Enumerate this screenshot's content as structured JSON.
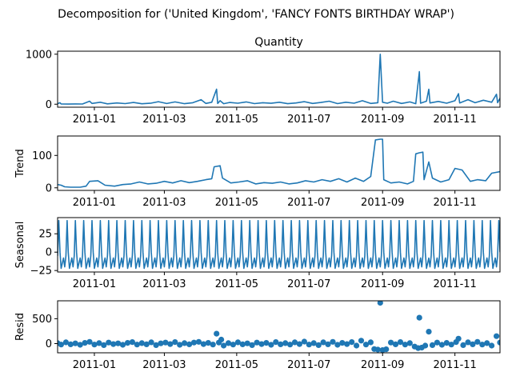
{
  "figure": {
    "suptitle": "Decomposition for ('United Kingdom', 'FANCY FONTS BIRTHDAY WRAP')"
  },
  "colors": {
    "series": "#1f77b4",
    "axis": "#000000",
    "background": "#ffffff"
  },
  "chart_data": [
    {
      "type": "line",
      "title": "Quantity",
      "ylabel": "",
      "xlim": [
        "2010-12-01",
        "2011-12-09"
      ],
      "ylim": [
        -60,
        1060
      ],
      "yticks": [
        0,
        1000
      ],
      "xticks": [
        "2011-01",
        "2011-03",
        "2011-05",
        "2011-07",
        "2011-09",
        "2011-11"
      ],
      "grid": false,
      "series": [
        {
          "points": [
            [
              "2010-12-01",
              10
            ],
            [
              "2010-12-03",
              30
            ],
            [
              "2010-12-04",
              5
            ],
            [
              "2010-12-10",
              3
            ],
            [
              "2010-12-16",
              6
            ],
            [
              "2010-12-22",
              4
            ],
            [
              "2010-12-28",
              60
            ],
            [
              "2010-12-30",
              15
            ],
            [
              "2011-01-06",
              40
            ],
            [
              "2011-01-12",
              8
            ],
            [
              "2011-01-20",
              25
            ],
            [
              "2011-01-27",
              12
            ],
            [
              "2011-02-03",
              35
            ],
            [
              "2011-02-10",
              9
            ],
            [
              "2011-02-18",
              22
            ],
            [
              "2011-02-24",
              50
            ],
            [
              "2011-03-03",
              14
            ],
            [
              "2011-03-10",
              45
            ],
            [
              "2011-03-18",
              10
            ],
            [
              "2011-03-25",
              30
            ],
            [
              "2011-04-01",
              90
            ],
            [
              "2011-04-05",
              15
            ],
            [
              "2011-04-10",
              40
            ],
            [
              "2011-04-14",
              300
            ],
            [
              "2011-04-15",
              15
            ],
            [
              "2011-04-17",
              70
            ],
            [
              "2011-04-20",
              10
            ],
            [
              "2011-04-25",
              35
            ],
            [
              "2011-05-02",
              20
            ],
            [
              "2011-05-09",
              45
            ],
            [
              "2011-05-16",
              12
            ],
            [
              "2011-05-23",
              30
            ],
            [
              "2011-05-30",
              18
            ],
            [
              "2011-06-06",
              40
            ],
            [
              "2011-06-13",
              10
            ],
            [
              "2011-06-20",
              25
            ],
            [
              "2011-06-27",
              50
            ],
            [
              "2011-07-04",
              15
            ],
            [
              "2011-07-11",
              35
            ],
            [
              "2011-07-18",
              60
            ],
            [
              "2011-07-25",
              12
            ],
            [
              "2011-08-01",
              40
            ],
            [
              "2011-08-08",
              20
            ],
            [
              "2011-08-15",
              70
            ],
            [
              "2011-08-22",
              15
            ],
            [
              "2011-08-28",
              30
            ],
            [
              "2011-08-30",
              1000
            ],
            [
              "2011-09-01",
              40
            ],
            [
              "2011-09-05",
              20
            ],
            [
              "2011-09-10",
              60
            ],
            [
              "2011-09-17",
              15
            ],
            [
              "2011-09-24",
              45
            ],
            [
              "2011-09-29",
              10
            ],
            [
              "2011-10-02",
              650
            ],
            [
              "2011-10-03",
              20
            ],
            [
              "2011-10-08",
              60
            ],
            [
              "2011-10-10",
              300
            ],
            [
              "2011-10-11",
              25
            ],
            [
              "2011-10-18",
              55
            ],
            [
              "2011-10-25",
              20
            ],
            [
              "2011-11-01",
              70
            ],
            [
              "2011-11-04",
              210
            ],
            [
              "2011-11-05",
              25
            ],
            [
              "2011-11-12",
              90
            ],
            [
              "2011-11-18",
              30
            ],
            [
              "2011-11-25",
              80
            ],
            [
              "2011-12-02",
              40
            ],
            [
              "2011-12-06",
              200
            ],
            [
              "2011-12-07",
              30
            ],
            [
              "2011-12-09",
              120
            ]
          ]
        }
      ]
    },
    {
      "type": "line",
      "title": "",
      "ylabel": "Trend",
      "xlim": [
        "2010-12-01",
        "2011-12-09"
      ],
      "ylim": [
        -8,
        160
      ],
      "yticks": [
        0,
        100
      ],
      "xticks": [
        "2011-01",
        "2011-03",
        "2011-05",
        "2011-07",
        "2011-09",
        "2011-11"
      ],
      "grid": false,
      "series": [
        {
          "points": [
            [
              "2010-12-01",
              10
            ],
            [
              "2010-12-04",
              8
            ],
            [
              "2010-12-07",
              3
            ],
            [
              "2010-12-12",
              2
            ],
            [
              "2010-12-20",
              2
            ],
            [
              "2010-12-25",
              5
            ],
            [
              "2010-12-28",
              20
            ],
            [
              "2011-01-04",
              22
            ],
            [
              "2011-01-10",
              8
            ],
            [
              "2011-01-18",
              5
            ],
            [
              "2011-01-25",
              10
            ],
            [
              "2011-02-01",
              12
            ],
            [
              "2011-02-08",
              18
            ],
            [
              "2011-02-15",
              12
            ],
            [
              "2011-02-22",
              14
            ],
            [
              "2011-03-01",
              20
            ],
            [
              "2011-03-08",
              15
            ],
            [
              "2011-03-15",
              22
            ],
            [
              "2011-03-22",
              16
            ],
            [
              "2011-03-29",
              20
            ],
            [
              "2011-04-05",
              25
            ],
            [
              "2011-04-10",
              28
            ],
            [
              "2011-04-12",
              65
            ],
            [
              "2011-04-17",
              68
            ],
            [
              "2011-04-19",
              30
            ],
            [
              "2011-04-26",
              15
            ],
            [
              "2011-05-03",
              18
            ],
            [
              "2011-05-10",
              22
            ],
            [
              "2011-05-17",
              12
            ],
            [
              "2011-05-24",
              16
            ],
            [
              "2011-05-31",
              14
            ],
            [
              "2011-06-07",
              18
            ],
            [
              "2011-06-14",
              12
            ],
            [
              "2011-06-21",
              15
            ],
            [
              "2011-06-28",
              22
            ],
            [
              "2011-07-05",
              18
            ],
            [
              "2011-07-12",
              25
            ],
            [
              "2011-07-19",
              20
            ],
            [
              "2011-07-26",
              28
            ],
            [
              "2011-08-02",
              18
            ],
            [
              "2011-08-09",
              30
            ],
            [
              "2011-08-16",
              20
            ],
            [
              "2011-08-22",
              35
            ],
            [
              "2011-08-26",
              148
            ],
            [
              "2011-08-30",
              150
            ],
            [
              "2011-09-01",
              150
            ],
            [
              "2011-09-02",
              25
            ],
            [
              "2011-09-08",
              15
            ],
            [
              "2011-09-15",
              18
            ],
            [
              "2011-09-22",
              12
            ],
            [
              "2011-09-27",
              20
            ],
            [
              "2011-09-29",
              105
            ],
            [
              "2011-10-02",
              108
            ],
            [
              "2011-10-05",
              110
            ],
            [
              "2011-10-06",
              25
            ],
            [
              "2011-10-10",
              80
            ],
            [
              "2011-10-13",
              30
            ],
            [
              "2011-10-20",
              18
            ],
            [
              "2011-10-27",
              25
            ],
            [
              "2011-11-01",
              60
            ],
            [
              "2011-11-07",
              55
            ],
            [
              "2011-11-14",
              20
            ],
            [
              "2011-11-20",
              25
            ],
            [
              "2011-11-27",
              22
            ],
            [
              "2011-12-02",
              45
            ],
            [
              "2011-12-09",
              50
            ]
          ]
        }
      ]
    },
    {
      "type": "line",
      "title": "",
      "ylabel": "Seasonal",
      "xlim": [
        "2010-12-01",
        "2011-12-09"
      ],
      "ylim": [
        -27,
        47
      ],
      "yticks": [
        -25,
        0,
        25
      ],
      "xticks": [
        "2011-01",
        "2011-03",
        "2011-05",
        "2011-07",
        "2011-09",
        "2011-11"
      ],
      "grid": false,
      "pattern": {
        "kind": "weekly",
        "start": "2010-12-01",
        "end": "2011-12-09",
        "cycle_days": 7,
        "values": [
          -5,
          43,
          0,
          -22,
          -15,
          -8,
          -20
        ]
      }
    },
    {
      "type": "scatter",
      "title": "",
      "ylabel": "Resid",
      "xlim": [
        "2010-12-01",
        "2011-12-09"
      ],
      "ylim": [
        -185,
        860
      ],
      "yticks": [
        0,
        500
      ],
      "xticks": [
        "2011-01",
        "2011-03",
        "2011-05",
        "2011-07",
        "2011-09",
        "2011-11"
      ],
      "grid": false,
      "series": [
        {
          "points": [
            [
              "2010-12-01",
              10
            ],
            [
              "2010-12-04",
              -20
            ],
            [
              "2010-12-08",
              25
            ],
            [
              "2010-12-12",
              -15
            ],
            [
              "2010-12-16",
              5
            ],
            [
              "2010-12-20",
              -25
            ],
            [
              "2010-12-24",
              15
            ],
            [
              "2010-12-28",
              35
            ],
            [
              "2011-01-01",
              -20
            ],
            [
              "2011-01-05",
              10
            ],
            [
              "2011-01-09",
              -30
            ],
            [
              "2011-01-13",
              20
            ],
            [
              "2011-01-17",
              -10
            ],
            [
              "2011-01-21",
              5
            ],
            [
              "2011-01-25",
              -25
            ],
            [
              "2011-01-29",
              15
            ],
            [
              "2011-02-02",
              30
            ],
            [
              "2011-02-06",
              -20
            ],
            [
              "2011-02-10",
              10
            ],
            [
              "2011-02-14",
              -15
            ],
            [
              "2011-02-18",
              25
            ],
            [
              "2011-02-22",
              -30
            ],
            [
              "2011-02-26",
              5
            ],
            [
              "2011-03-02",
              20
            ],
            [
              "2011-03-06",
              -10
            ],
            [
              "2011-03-10",
              30
            ],
            [
              "2011-03-14",
              -25
            ],
            [
              "2011-03-18",
              10
            ],
            [
              "2011-03-22",
              -15
            ],
            [
              "2011-03-26",
              20
            ],
            [
              "2011-03-30",
              35
            ],
            [
              "2011-04-03",
              -10
            ],
            [
              "2011-04-07",
              15
            ],
            [
              "2011-04-11",
              -20
            ],
            [
              "2011-04-14",
              200
            ],
            [
              "2011-04-16",
              20
            ],
            [
              "2011-04-18",
              80
            ],
            [
              "2011-04-20",
              -40
            ],
            [
              "2011-04-24",
              10
            ],
            [
              "2011-04-28",
              -20
            ],
            [
              "2011-05-02",
              25
            ],
            [
              "2011-05-06",
              -15
            ],
            [
              "2011-05-10",
              5
            ],
            [
              "2011-05-14",
              -30
            ],
            [
              "2011-05-18",
              20
            ],
            [
              "2011-05-22",
              -10
            ],
            [
              "2011-05-26",
              15
            ],
            [
              "2011-05-30",
              -25
            ],
            [
              "2011-06-03",
              30
            ],
            [
              "2011-06-07",
              -15
            ],
            [
              "2011-06-11",
              10
            ],
            [
              "2011-06-15",
              -20
            ],
            [
              "2011-06-19",
              25
            ],
            [
              "2011-06-23",
              -10
            ],
            [
              "2011-06-27",
              40
            ],
            [
              "2011-07-01",
              -20
            ],
            [
              "2011-07-05",
              10
            ],
            [
              "2011-07-09",
              -30
            ],
            [
              "2011-07-13",
              25
            ],
            [
              "2011-07-17",
              -15
            ],
            [
              "2011-07-21",
              35
            ],
            [
              "2011-07-25",
              -25
            ],
            [
              "2011-07-29",
              15
            ],
            [
              "2011-08-02",
              -10
            ],
            [
              "2011-08-06",
              30
            ],
            [
              "2011-08-10",
              -40
            ],
            [
              "2011-08-14",
              60
            ],
            [
              "2011-08-18",
              -20
            ],
            [
              "2011-08-22",
              25
            ],
            [
              "2011-08-25",
              -110
            ],
            [
              "2011-08-28",
              -120
            ],
            [
              "2011-08-30",
              820
            ],
            [
              "2011-09-01",
              -130
            ],
            [
              "2011-09-04",
              -115
            ],
            [
              "2011-09-08",
              20
            ],
            [
              "2011-09-12",
              -15
            ],
            [
              "2011-09-16",
              30
            ],
            [
              "2011-09-20",
              -20
            ],
            [
              "2011-09-24",
              10
            ],
            [
              "2011-09-28",
              -60
            ],
            [
              "2011-10-01",
              -90
            ],
            [
              "2011-10-02",
              520
            ],
            [
              "2011-10-04",
              -80
            ],
            [
              "2011-10-07",
              -40
            ],
            [
              "2011-10-10",
              240
            ],
            [
              "2011-10-13",
              -30
            ],
            [
              "2011-10-17",
              20
            ],
            [
              "2011-10-21",
              -25
            ],
            [
              "2011-10-25",
              15
            ],
            [
              "2011-10-29",
              -20
            ],
            [
              "2011-11-02",
              30
            ],
            [
              "2011-11-04",
              100
            ],
            [
              "2011-11-08",
              -30
            ],
            [
              "2011-11-12",
              25
            ],
            [
              "2011-11-16",
              -15
            ],
            [
              "2011-11-20",
              35
            ],
            [
              "2011-11-24",
              -20
            ],
            [
              "2011-11-28",
              10
            ],
            [
              "2011-12-02",
              -40
            ],
            [
              "2011-12-06",
              150
            ],
            [
              "2011-12-09",
              20
            ]
          ]
        }
      ]
    }
  ]
}
